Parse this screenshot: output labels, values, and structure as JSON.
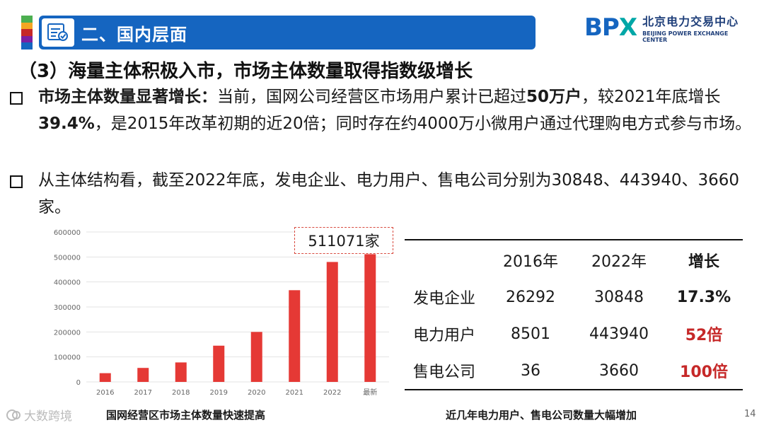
{
  "header": {
    "title": "二、国内层面",
    "stripe_colors": [
      "#4caf50",
      "#f4a623",
      "#c62828",
      "#7b1fa2",
      "#1565c0"
    ]
  },
  "logo": {
    "mark_b": "B",
    "mark_p": "P",
    "mark_x": "X",
    "cn": "北京电力交易中心",
    "en": "BEIJING POWER EXCHANGE CENTER"
  },
  "subtitle": "（3）海量主体积极入市，市场主体数量取得指数级增长",
  "bullets": [
    {
      "lead": "市场主体数量显著增长：",
      "t1": "当前，国网公司经营区市场用户累计已超过",
      "b1": "50万户",
      "t2": "，较2021年底增长",
      "b2": "39.4%",
      "t3": "，是2015年改革初期的近20倍；同时存在约4000万小微用户通过代理购电方式参与市场。"
    },
    {
      "text": "从主体结构看，截至2022年底，发电企业、电力用户、售电公司分别为30848、443940、3660家。"
    }
  ],
  "chart_data": {
    "type": "bar",
    "categories": [
      "2016",
      "2017",
      "2018",
      "2019",
      "2020",
      "2021",
      "2022",
      "最新"
    ],
    "values": [
      35000,
      56000,
      78000,
      145000,
      200000,
      367000,
      480000,
      511071
    ],
    "ylim": [
      0,
      600000
    ],
    "yticks": [
      "0",
      "100000",
      "200000",
      "300000",
      "400000",
      "500000",
      "600000"
    ],
    "bar_color": "#e53935",
    "callout": "511071家"
  },
  "chart_caption": "国网经营区市场主体数量快速提高",
  "table": {
    "headers": [
      "",
      "2016年",
      "2022年",
      "增长"
    ],
    "rows": [
      {
        "label": "发电企业",
        "y2016": "26292",
        "y2022": "30848",
        "growth": "17.3%"
      },
      {
        "label": "电力用户",
        "y2016": "8501",
        "y2022": "443940",
        "growth": "52倍"
      },
      {
        "label": "售电公司",
        "y2016": "36",
        "y2022": "3660",
        "growth": "100倍"
      }
    ]
  },
  "table_caption": "近几年电力用户、售电公司数量大幅增加",
  "watermark": "大数跨境",
  "page_number": "14"
}
